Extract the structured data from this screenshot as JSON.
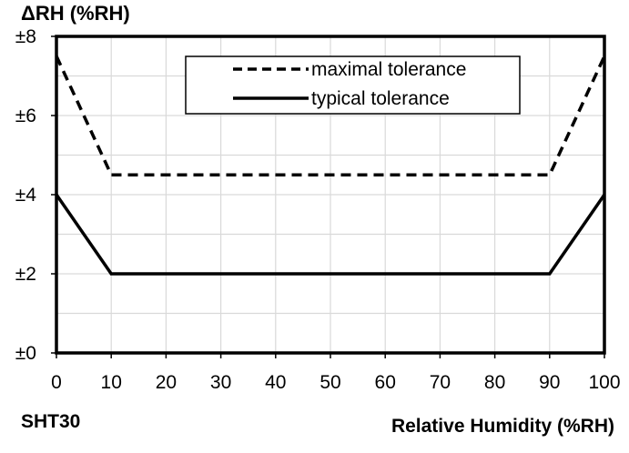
{
  "chart_data": {
    "type": "line",
    "title": "ΔRH (%RH)",
    "xlabel": "Relative Humidity (%RH)",
    "ylabel": "ΔRH (%RH)",
    "sensor_label": "SHT30",
    "x": [
      0,
      10,
      90,
      100
    ],
    "xlim": [
      0,
      100
    ],
    "ylim": [
      0,
      8
    ],
    "xticks": [
      0,
      10,
      20,
      30,
      40,
      50,
      60,
      70,
      80,
      90,
      100
    ],
    "yticks": [
      0,
      2,
      4,
      6,
      8
    ],
    "ytick_labels": [
      "±0",
      "±2",
      "±4",
      "±6",
      "±8"
    ],
    "grid": true,
    "legend_position": "top-center",
    "series": [
      {
        "name": "maximal tolerance",
        "style": "dashed",
        "color": "#000000",
        "values": [
          7.5,
          4.5,
          4.5,
          7.5
        ]
      },
      {
        "name": "typical tolerance",
        "style": "solid",
        "color": "#000000",
        "values": [
          4,
          2,
          2,
          4
        ]
      }
    ]
  }
}
